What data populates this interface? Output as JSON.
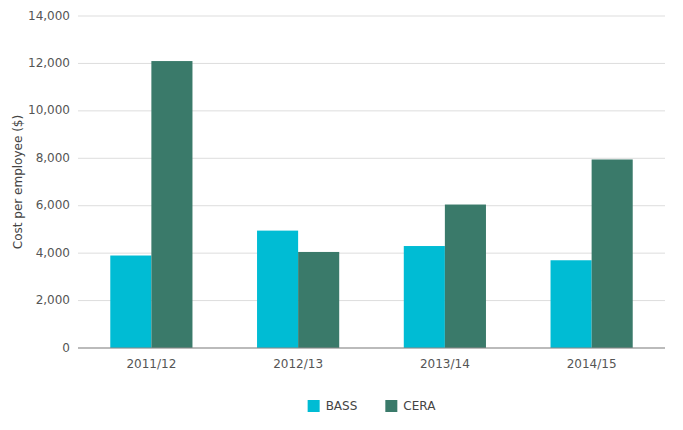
{
  "chart_data": {
    "type": "bar",
    "y_label": "Cost per employee ($)",
    "categories": [
      "2011/12",
      "2012/13",
      "2013/14",
      "2014/15"
    ],
    "series": [
      {
        "name": "BASS",
        "color": "#00BCD4",
        "values": [
          3900,
          4950,
          4300,
          3700
        ]
      },
      {
        "name": "CERA",
        "color": "#3a7a6a",
        "values": [
          12100,
          4050,
          6050,
          7950
        ]
      }
    ],
    "ylim": [
      0,
      14000
    ],
    "yticks": [
      0,
      {
        "value": 2000,
        "label": "2,000"
      },
      {
        "value": 4000,
        "label": "4,000"
      },
      {
        "value": 6000,
        "label": "6,000"
      },
      {
        "value": 8000,
        "label": "8,000"
      },
      {
        "value": 10000,
        "label": "10,000"
      },
      {
        "value": 12000,
        "label": "12,000"
      },
      {
        "value": 14000,
        "label": "14,000"
      }
    ],
    "grid": true,
    "legend": "bottom"
  }
}
